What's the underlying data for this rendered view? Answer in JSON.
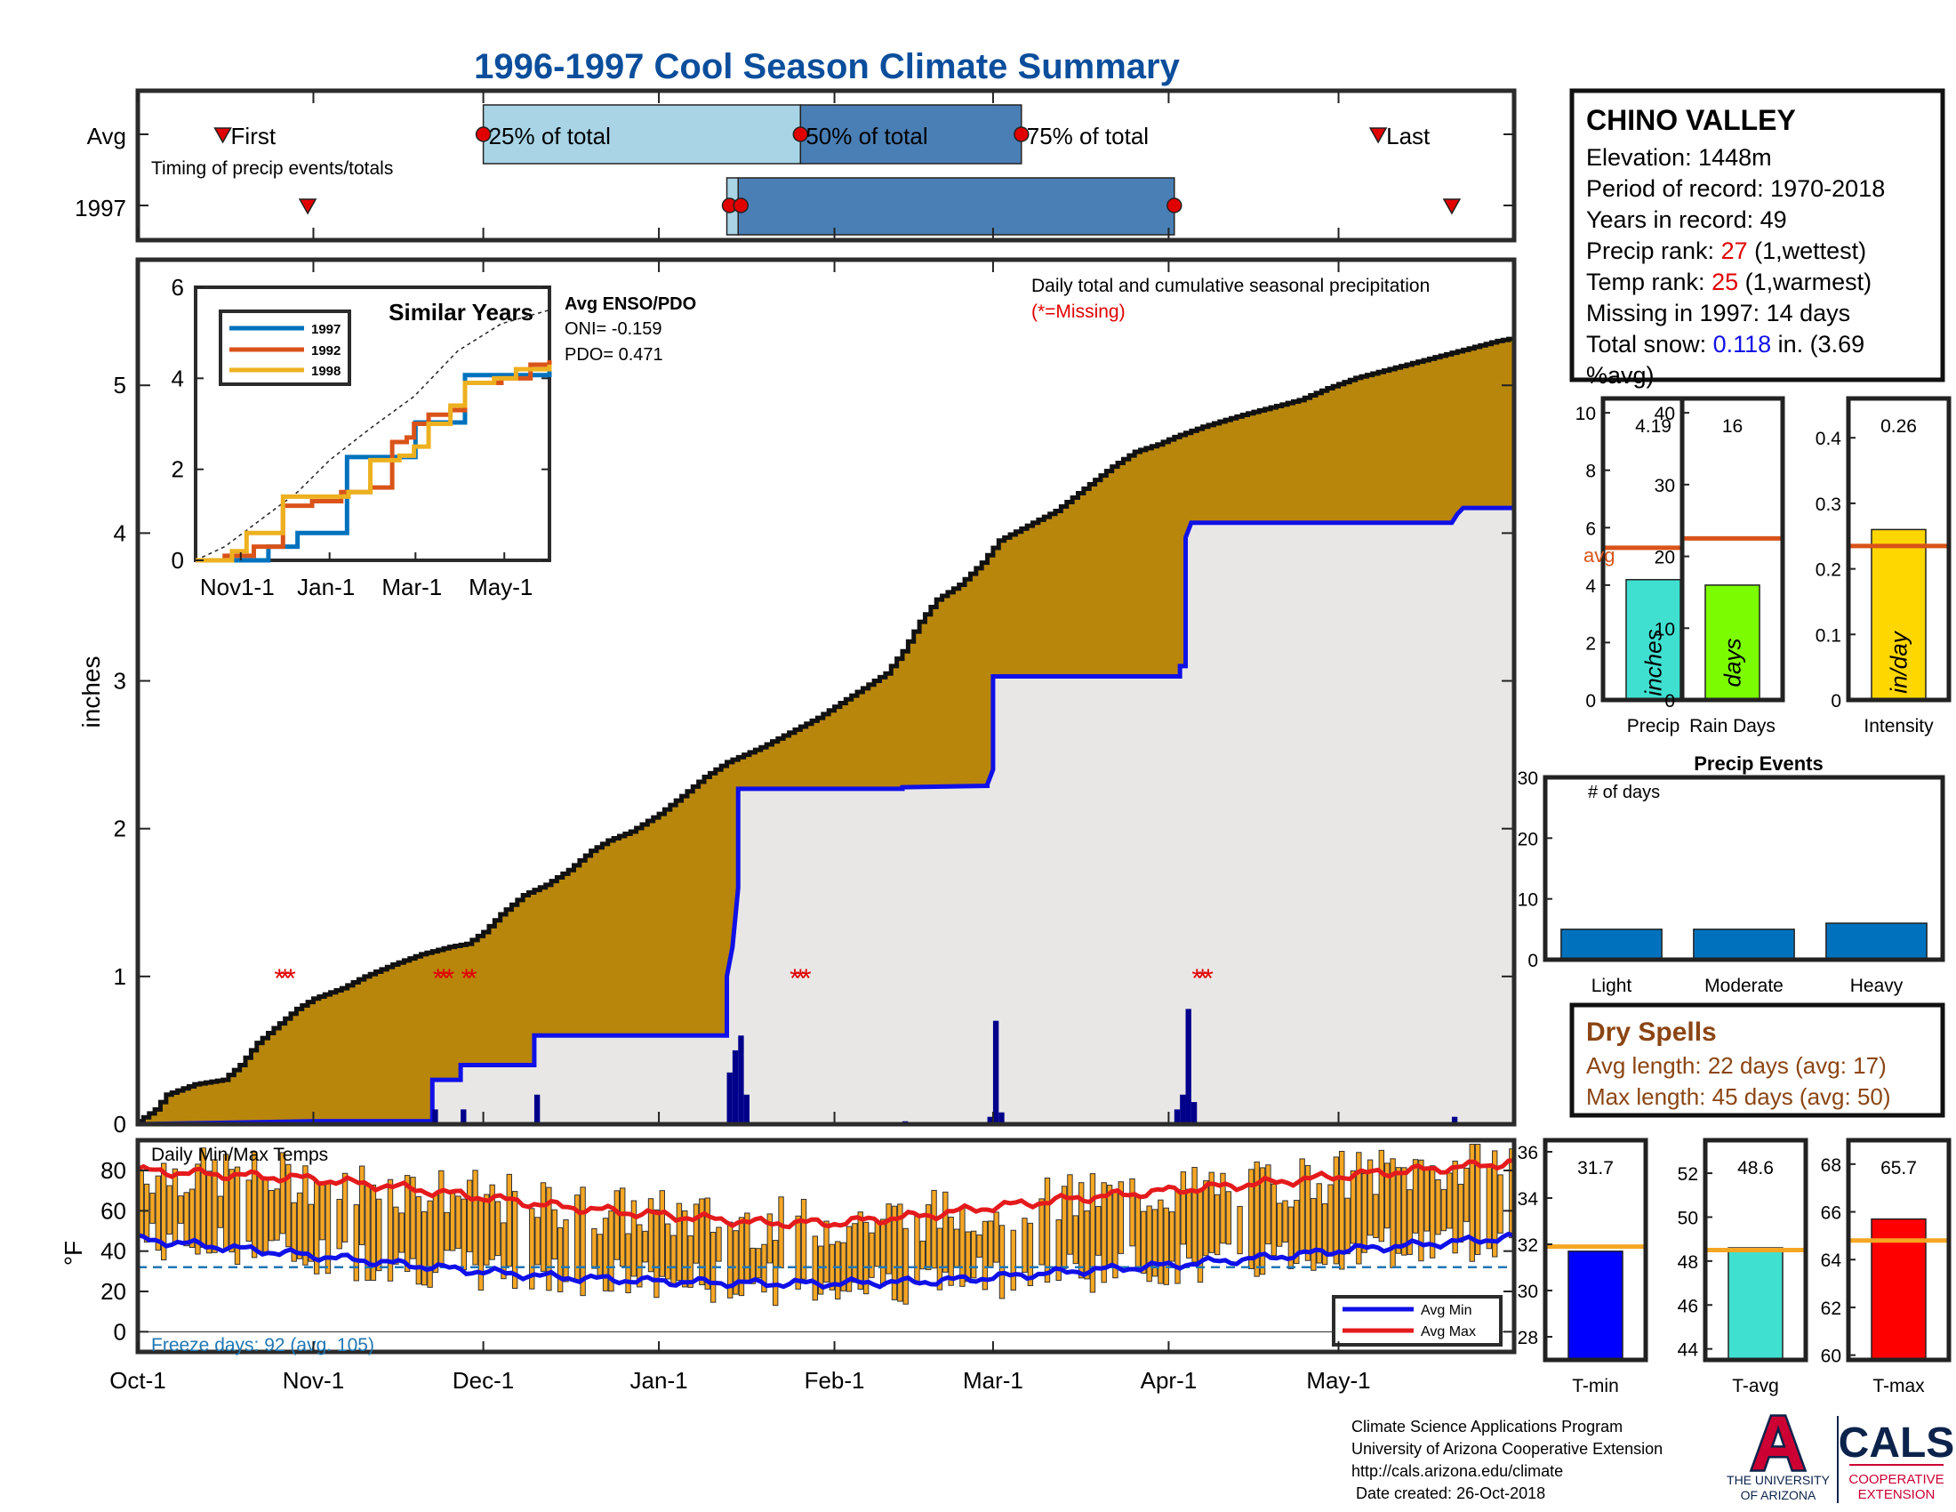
{
  "title": "1996-1997 Cool Season Climate Summary",
  "x_axis": {
    "ticks": [
      "Oct-1",
      "Nov-1",
      "Dec-1",
      "Jan-1",
      "Feb-1",
      "Mar-1",
      "Apr-1",
      "May-1"
    ],
    "days": [
      0,
      31,
      61,
      92,
      123,
      151,
      182,
      212
    ],
    "season_days": 243
  },
  "timing_panel": {
    "row_labels": [
      "Avg",
      "1997"
    ],
    "caption": "Timing of precip events/totals",
    "avg": {
      "first": 15,
      "q25": 61,
      "q50": 117,
      "q75": 156,
      "last": 219,
      "labels": {
        "first": "First",
        "q25": "25% of total",
        "q50": "50% of total",
        "q75": "75% of total",
        "last": "Last"
      }
    },
    "year": {
      "first": 30,
      "q25": 104,
      "q50": 106,
      "q75": 183,
      "last": 232
    },
    "colors": {
      "light": "#a8d4e6",
      "dark": "#4a7fb5",
      "marker": "#e10000"
    }
  },
  "precip_panel": {
    "ylabel": "inches",
    "y_ticks": [
      0,
      1,
      2,
      3,
      4,
      5
    ],
    "ylim": [
      0,
      5.85
    ],
    "caption": "Daily total and cumulative seasonal precipitation",
    "missing_note": "(*=Missing)",
    "avg_cumulative": [
      [
        0,
        0.02
      ],
      [
        3,
        0.1
      ],
      [
        5,
        0.2
      ],
      [
        10,
        0.27
      ],
      [
        15,
        0.3
      ],
      [
        18,
        0.4
      ],
      [
        21,
        0.55
      ],
      [
        24,
        0.65
      ],
      [
        28,
        0.78
      ],
      [
        31,
        0.85
      ],
      [
        36,
        0.92
      ],
      [
        40,
        1.0
      ],
      [
        45,
        1.08
      ],
      [
        50,
        1.15
      ],
      [
        55,
        1.2
      ],
      [
        58,
        1.22
      ],
      [
        61,
        1.3
      ],
      [
        64,
        1.42
      ],
      [
        68,
        1.55
      ],
      [
        72,
        1.62
      ],
      [
        76,
        1.72
      ],
      [
        80,
        1.85
      ],
      [
        83,
        1.92
      ],
      [
        87,
        1.98
      ],
      [
        92,
        2.1
      ],
      [
        96,
        2.22
      ],
      [
        100,
        2.35
      ],
      [
        104,
        2.45
      ],
      [
        110,
        2.55
      ],
      [
        115,
        2.65
      ],
      [
        120,
        2.75
      ],
      [
        124,
        2.85
      ],
      [
        128,
        2.95
      ],
      [
        132,
        3.05
      ],
      [
        135,
        3.2
      ],
      [
        138,
        3.4
      ],
      [
        141,
        3.55
      ],
      [
        145,
        3.65
      ],
      [
        149,
        3.8
      ],
      [
        152,
        3.95
      ],
      [
        157,
        4.05
      ],
      [
        162,
        4.15
      ],
      [
        167,
        4.3
      ],
      [
        172,
        4.45
      ],
      [
        176,
        4.55
      ],
      [
        180,
        4.6
      ],
      [
        183,
        4.65
      ],
      [
        188,
        4.72
      ],
      [
        195,
        4.8
      ],
      [
        200,
        4.85
      ],
      [
        205,
        4.9
      ],
      [
        210,
        4.98
      ],
      [
        215,
        5.05
      ],
      [
        220,
        5.1
      ],
      [
        225,
        5.15
      ],
      [
        230,
        5.2
      ],
      [
        235,
        5.25
      ],
      [
        240,
        5.3
      ],
      [
        243,
        5.32
      ]
    ],
    "year_cumulative": [
      [
        0,
        0
      ],
      [
        31,
        0.02
      ],
      [
        52,
        0.02
      ],
      [
        52,
        0.3
      ],
      [
        57,
        0.3
      ],
      [
        57,
        0.4
      ],
      [
        70,
        0.4
      ],
      [
        70,
        0.6
      ],
      [
        104,
        0.6
      ],
      [
        104,
        1.0
      ],
      [
        105,
        1.2
      ],
      [
        106,
        1.6
      ],
      [
        106,
        2.27
      ],
      [
        135,
        2.27
      ],
      [
        135,
        2.28
      ],
      [
        150,
        2.29
      ],
      [
        150,
        2.3
      ],
      [
        151,
        2.4
      ],
      [
        151,
        3.03
      ],
      [
        184,
        3.03
      ],
      [
        184,
        3.1
      ],
      [
        185,
        3.1
      ],
      [
        185,
        3.97
      ],
      [
        186,
        4.07
      ],
      [
        232,
        4.07
      ],
      [
        233,
        4.13
      ],
      [
        234,
        4.17
      ],
      [
        243,
        4.17
      ]
    ],
    "daily_bars": [
      [
        31,
        0.01
      ],
      [
        52,
        0.1
      ],
      [
        57,
        0.1
      ],
      [
        70,
        0.2
      ],
      [
        104,
        0.35
      ],
      [
        105,
        0.5
      ],
      [
        106,
        0.6
      ],
      [
        107,
        0.2
      ],
      [
        135,
        0.02
      ],
      [
        150,
        0.05
      ],
      [
        151,
        0.7
      ],
      [
        152,
        0.08
      ],
      [
        183,
        0.1
      ],
      [
        184,
        0.2
      ],
      [
        185,
        0.78
      ],
      [
        186,
        0.15
      ],
      [
        232,
        0.05
      ]
    ],
    "missing_days": [
      25,
      26,
      27,
      53,
      54,
      55,
      58,
      59,
      116,
      117,
      118,
      187,
      188,
      189
    ],
    "missing_y": 1.0,
    "colors": {
      "avg_fill": "#b8860b",
      "year_fill": "#e9e7e6",
      "year_line": "#1010e8",
      "bar": "#00008b",
      "missing": "#e10000"
    }
  },
  "inset": {
    "title": "Similar Years",
    "x_ticks": [
      "Nov1-1",
      "Jan-1",
      "Mar-1",
      "May-1"
    ],
    "x_tick_days": [
      31,
      92,
      151,
      212
    ],
    "y_ticks": [
      0,
      2,
      4,
      6
    ],
    "ylim": [
      0,
      6
    ],
    "legend": [
      "1997",
      "1992",
      "1998"
    ],
    "colors": [
      "#0072bd",
      "#d95319",
      "#edb120"
    ],
    "avg_line": [
      [
        0,
        0
      ],
      [
        20,
        0.3
      ],
      [
        45,
        0.9
      ],
      [
        70,
        1.5
      ],
      [
        92,
        2.2
      ],
      [
        120,
        2.9
      ],
      [
        150,
        3.6
      ],
      [
        180,
        4.6
      ],
      [
        210,
        5.2
      ],
      [
        243,
        5.5
      ]
    ],
    "series": [
      [
        [
          0,
          0
        ],
        [
          50,
          0
        ],
        [
          50,
          0.3
        ],
        [
          70,
          0.3
        ],
        [
          70,
          0.6
        ],
        [
          104,
          0.6
        ],
        [
          104,
          2.27
        ],
        [
          151,
          2.27
        ],
        [
          151,
          3.03
        ],
        [
          185,
          3.03
        ],
        [
          185,
          4.07
        ],
        [
          243,
          4.17
        ]
      ],
      [
        [
          0,
          0
        ],
        [
          20,
          0.1
        ],
        [
          40,
          0.3
        ],
        [
          60,
          1.2
        ],
        [
          80,
          1.3
        ],
        [
          100,
          1.5
        ],
        [
          120,
          1.6
        ],
        [
          135,
          2.6
        ],
        [
          145,
          2.7
        ],
        [
          150,
          3.0
        ],
        [
          160,
          3.2
        ],
        [
          175,
          3.3
        ],
        [
          185,
          3.9
        ],
        [
          210,
          4.0
        ],
        [
          230,
          4.3
        ],
        [
          243,
          4.4
        ]
      ],
      [
        [
          0,
          0
        ],
        [
          25,
          0.2
        ],
        [
          35,
          0.6
        ],
        [
          60,
          1.4
        ],
        [
          90,
          1.4
        ],
        [
          105,
          1.5
        ],
        [
          120,
          2.2
        ],
        [
          140,
          2.3
        ],
        [
          150,
          2.5
        ],
        [
          160,
          3.0
        ],
        [
          175,
          3.4
        ],
        [
          185,
          3.9
        ],
        [
          205,
          4.0
        ],
        [
          220,
          4.2
        ],
        [
          243,
          4.3
        ]
      ]
    ],
    "enso": {
      "title": "Avg ENSO/PDO",
      "oni": "ONI= -0.159",
      "pdo": "PDO= 0.471"
    }
  },
  "temp_panel": {
    "ylabel": "°F",
    "caption": "Daily Min/Max Temps",
    "freeze_text": "Freeze days: 92 (avg. 105)",
    "y_ticks": [
      0,
      20,
      40,
      60,
      80
    ],
    "ylim": [
      -10,
      95
    ],
    "freeze_line": 32,
    "avg_max": [
      [
        0,
        80
      ],
      [
        15,
        78
      ],
      [
        30,
        76
      ],
      [
        45,
        72
      ],
      [
        60,
        67
      ],
      [
        75,
        62
      ],
      [
        92,
        58
      ],
      [
        110,
        54
      ],
      [
        123,
        54
      ],
      [
        140,
        58
      ],
      [
        151,
        62
      ],
      [
        165,
        66
      ],
      [
        182,
        70
      ],
      [
        200,
        74
      ],
      [
        215,
        78
      ],
      [
        230,
        81
      ],
      [
        243,
        84
      ]
    ],
    "avg_min": [
      [
        0,
        46
      ],
      [
        15,
        42
      ],
      [
        30,
        38
      ],
      [
        45,
        34
      ],
      [
        60,
        30
      ],
      [
        75,
        27
      ],
      [
        92,
        25
      ],
      [
        110,
        24
      ],
      [
        123,
        24
      ],
      [
        140,
        25
      ],
      [
        151,
        27
      ],
      [
        165,
        30
      ],
      [
        182,
        33
      ],
      [
        200,
        37
      ],
      [
        215,
        41
      ],
      [
        230,
        44
      ],
      [
        243,
        47
      ]
    ],
    "legend": [
      "Avg Min",
      "Avg Max"
    ],
    "colors": {
      "bar": "#f5a623",
      "min": "#1010e8",
      "max": "#e41a1c",
      "freeze": "#1f77b4",
      "freeze_text": "#1f77b4"
    }
  },
  "station": {
    "name": "CHINO VALLEY",
    "lines": [
      {
        "label": "Elevation: 1448m"
      },
      {
        "label": "Period of record: 1970-2018"
      },
      {
        "label": "Years in record: 49"
      },
      {
        "label": "Precip rank: ",
        "value": "27",
        "suffix": " (1,wettest)"
      },
      {
        "label": "Temp rank: ",
        "value": "25",
        "suffix": " (1,warmest)"
      },
      {
        "label": "Missing in 1997: 14 days"
      },
      {
        "label": "Total snow: ",
        "value": "0.118",
        "suffix": " in. (3.69"
      },
      {
        "label": "%avg)"
      }
    ],
    "value_colors": [
      "#e10000",
      "#e10000",
      "#1010e8"
    ]
  },
  "summary_bars": [
    {
      "label": "Precip",
      "value": 4.19,
      "value_text": "4.19",
      "avg": 5.3,
      "avg_label": "avg",
      "unit": "inches",
      "color": "#40e0d0",
      "ylim": [
        0,
        10.5
      ],
      "ticks": [
        0,
        2,
        4,
        6,
        8,
        10
      ]
    },
    {
      "label": "Rain Days",
      "value": 16,
      "value_text": "16",
      "avg": 22.5,
      "unit": "days",
      "color": "#7cfc00",
      "ylim": [
        0,
        42
      ],
      "ticks": [
        0,
        10,
        20,
        30,
        40
      ]
    },
    {
      "label": "Intensity",
      "value": 0.26,
      "value_text": "0.26",
      "avg": 0.235,
      "unit": "in/day",
      "color": "#ffd700",
      "ylim": [
        0,
        0.46
      ],
      "ticks": [
        0,
        0.1,
        0.2,
        0.3,
        0.4
      ]
    }
  ],
  "precip_events": {
    "title": "Precip Events",
    "ylabel": "# of days",
    "categories": [
      "Light",
      "Moderate",
      "Heavy"
    ],
    "values": [
      5,
      5,
      6
    ],
    "ylim": [
      0,
      30
    ],
    "ticks": [
      0,
      10,
      20,
      30
    ],
    "color": "#0072bd"
  },
  "dry_spells": {
    "title": "Dry Spells",
    "avg_length": "Avg length: 22 days (avg: 17)",
    "max_length": "Max length: 45 days (avg: 50)",
    "color": "#8b4513"
  },
  "temp_bars": [
    {
      "label": "T-min",
      "value": 31.7,
      "value_text": "31.7",
      "avg": 31.9,
      "color": "#0000ff",
      "ylim": [
        27,
        36.5
      ],
      "ticks": [
        28,
        30,
        32,
        34,
        36
      ]
    },
    {
      "label": "T-avg",
      "value": 48.6,
      "value_text": "48.6",
      "avg": 48.5,
      "color": "#40e0d0",
      "ylim": [
        43.5,
        53.5
      ],
      "ticks": [
        44,
        46,
        48,
        50,
        52
      ]
    },
    {
      "label": "T-max",
      "value": 65.7,
      "value_text": "65.7",
      "avg": 64.8,
      "color": "#ff0000",
      "ylim": [
        59.8,
        69
      ],
      "ticks": [
        60,
        62,
        64,
        66,
        68
      ]
    }
  ],
  "footer": {
    "lines": [
      "Climate Science Applications Program",
      "University of Arizona Cooperative Extension",
      "http://cals.arizona.edu/climate",
      " Date created: 26-Oct-2018"
    ],
    "logo": {
      "letter": "A",
      "univ1": "THE UNIVERSITY",
      "univ2": "OF ARIZONA",
      "cals": "CALS",
      "coop1": "COOPERATIVE",
      "coop2": "EXTENSION"
    }
  },
  "colors": {
    "title": "#0b4e9c",
    "frame": "#2b2b2b",
    "avg_line": "#d95319"
  }
}
